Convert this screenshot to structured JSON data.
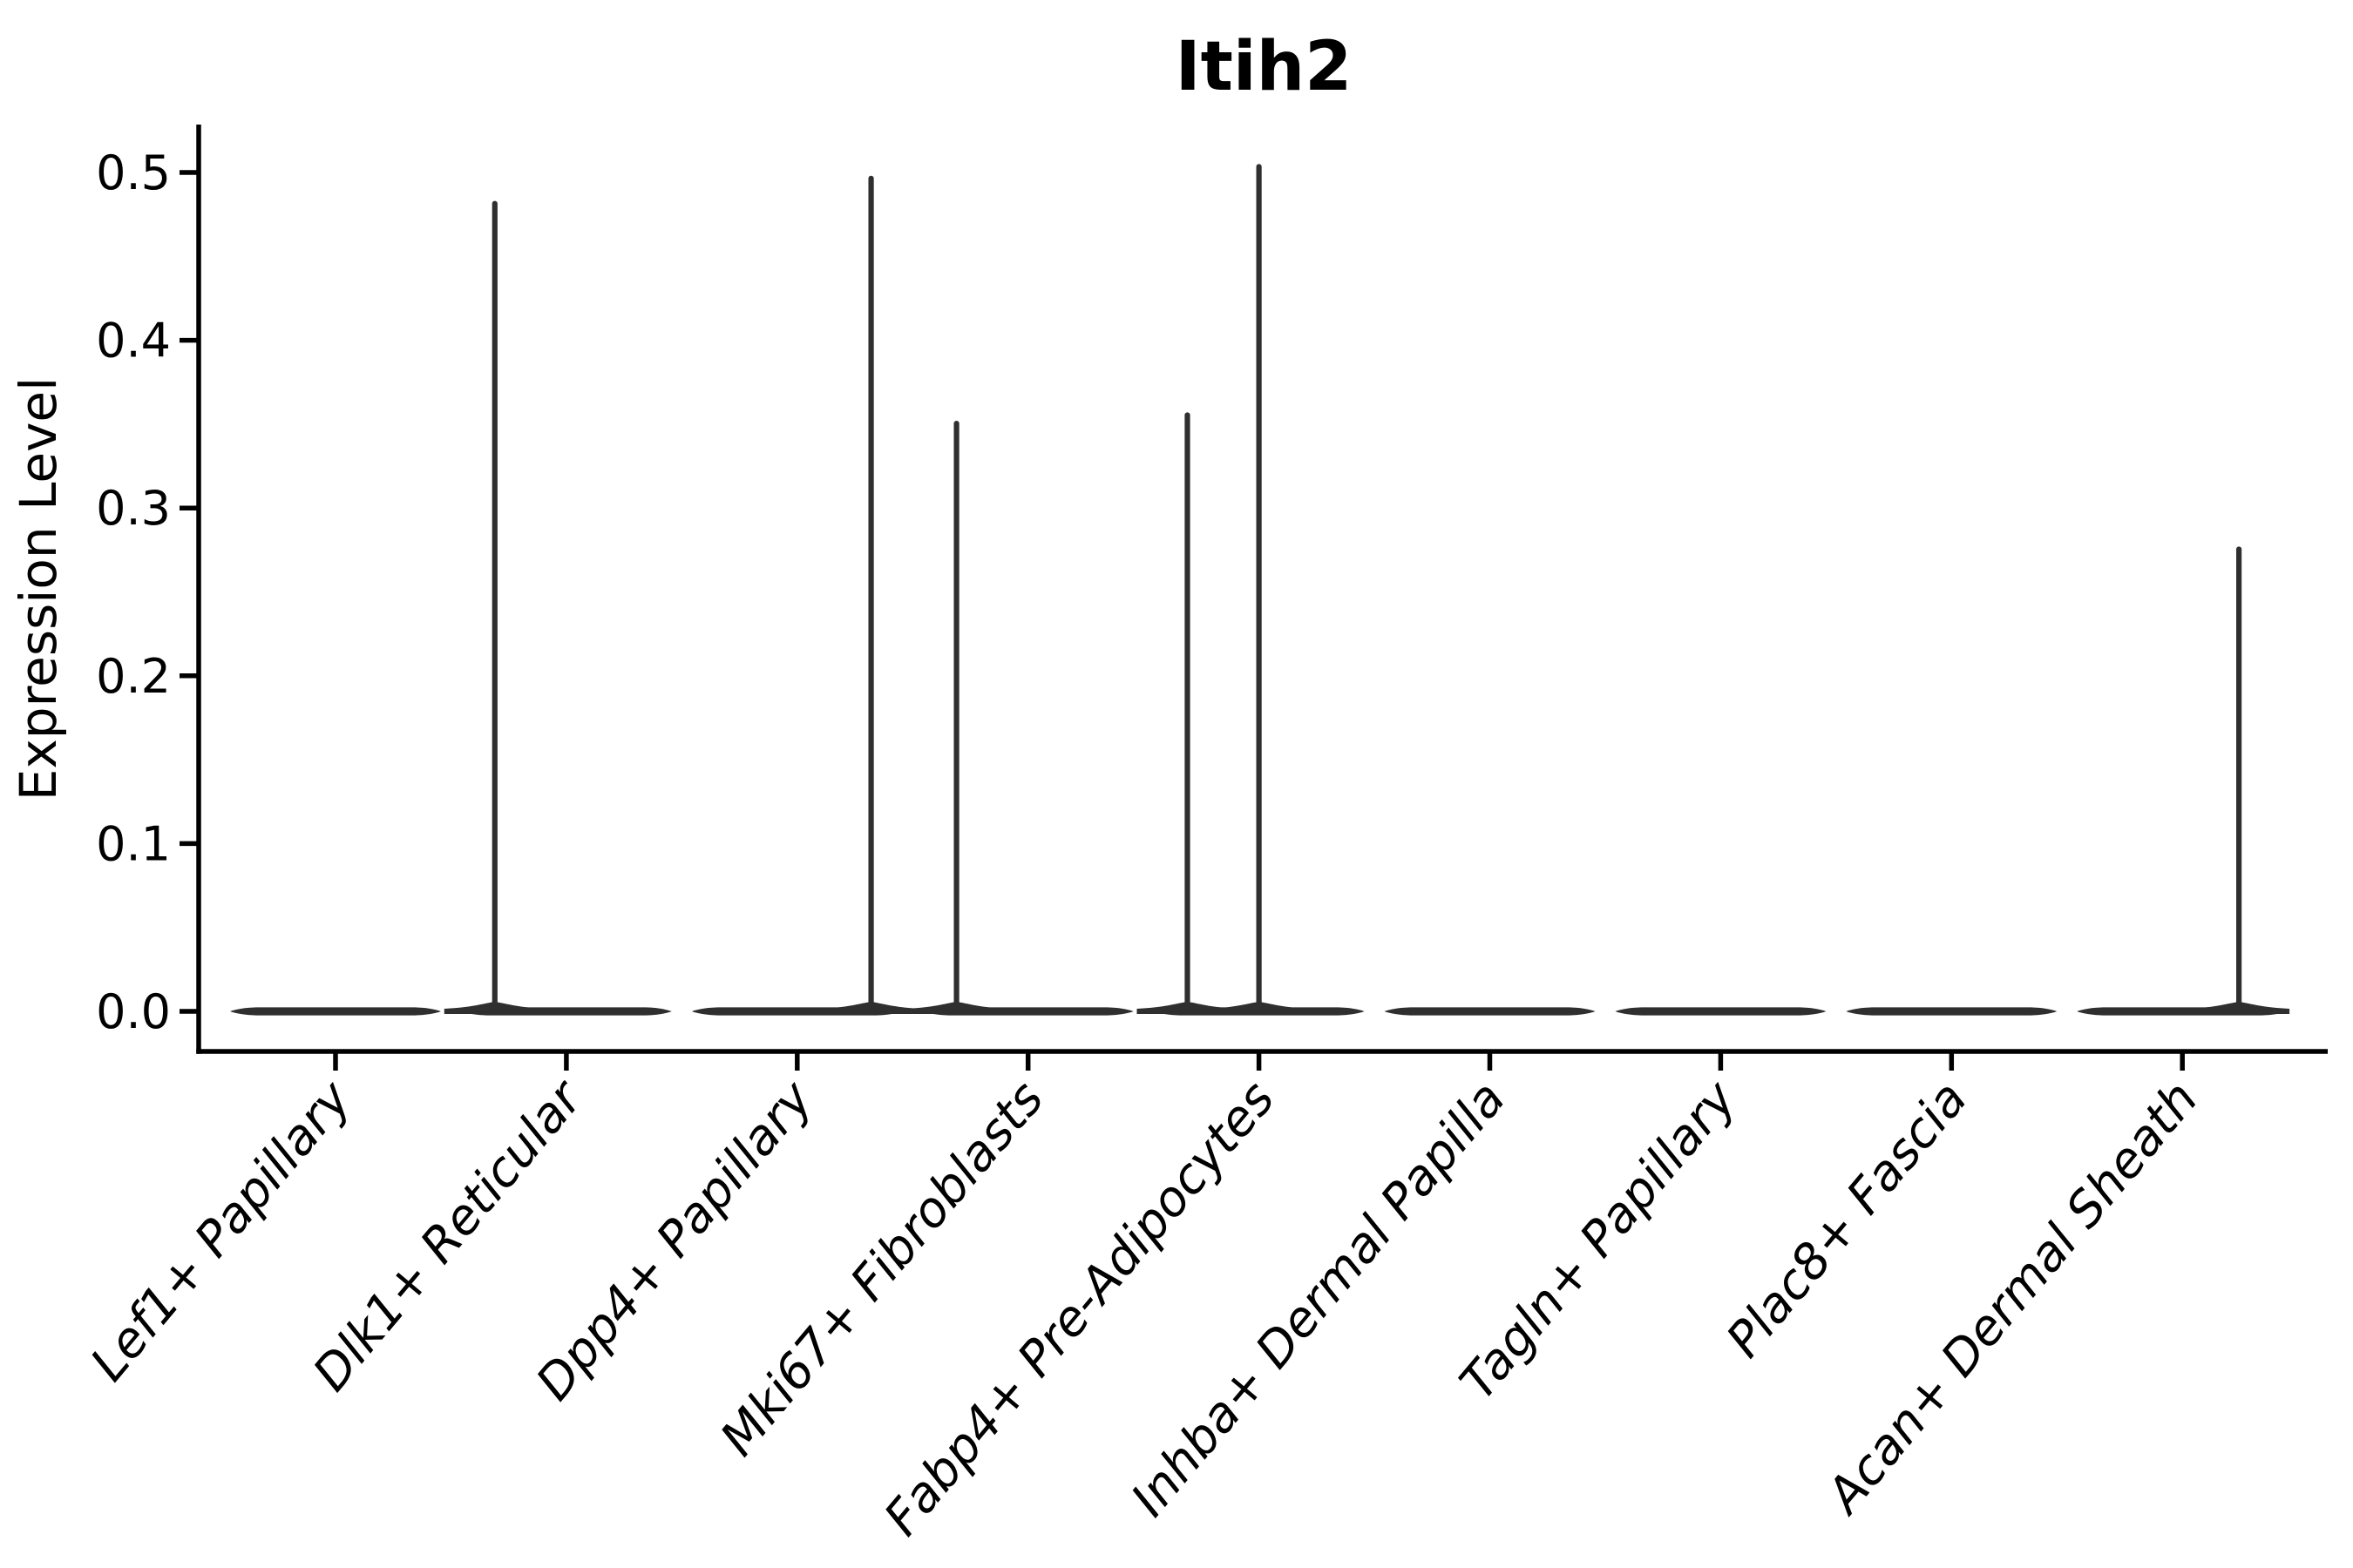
{
  "chart_data": {
    "type": "violin",
    "title": "Itih2",
    "ylabel": "Expression Level",
    "xlabel": "",
    "ylim": [
      -0.024,
      0.528
    ],
    "yticks": [
      "0.0",
      "0.1",
      "0.2",
      "0.3",
      "0.4",
      "0.5"
    ],
    "grid": false,
    "legend": null,
    "xtick_rotation": 50,
    "xtick_style": "italic",
    "categories": [
      "Lef1+ Papillary",
      "Dlk1+ Reticular",
      "Dpp4+ Papillary",
      "Mki67+ Fibroblasts",
      "Fabp4+ Pre-Adipocytes",
      "Inhba+ Dermal Papilla",
      "Tagln+ Papillary",
      "Plac8+ Fascia",
      "Acan+ Dermal Sheath"
    ],
    "violins": [
      {
        "category": "Lef1+ Papillary",
        "zero_body": true,
        "spikes": []
      },
      {
        "category": "Dlk1+ Reticular",
        "zero_body": true,
        "spikes": [
          {
            "offset": -0.31,
            "peak": 0.483
          }
        ]
      },
      {
        "category": "Dpp4+ Papillary",
        "zero_body": true,
        "spikes": [
          {
            "offset": 0.32,
            "peak": 0.498
          }
        ]
      },
      {
        "category": "Mki67+ Fibroblasts",
        "zero_body": true,
        "spikes": [
          {
            "offset": -0.31,
            "peak": 0.352
          }
        ]
      },
      {
        "category": "Fabp4+ Pre-Adipocytes",
        "zero_body": true,
        "spikes": [
          {
            "offset": -0.31,
            "peak": 0.357
          },
          {
            "offset": 0.0,
            "peak": 0.505
          }
        ]
      },
      {
        "category": "Inhba+ Dermal Papilla",
        "zero_body": true,
        "spikes": []
      },
      {
        "category": "Tagln+ Papillary",
        "zero_body": true,
        "spikes": []
      },
      {
        "category": "Plac8+ Fascia",
        "zero_body": true,
        "spikes": []
      },
      {
        "category": "Acan+ Dermal Sheath",
        "zero_body": true,
        "spikes": [
          {
            "offset": 0.245,
            "peak": 0.277
          }
        ]
      }
    ],
    "violin_width": 0.91,
    "colors": {
      "violin": "#2f2f2f",
      "axis": "#000000",
      "text": "#000000",
      "background": "#ffffff"
    }
  }
}
